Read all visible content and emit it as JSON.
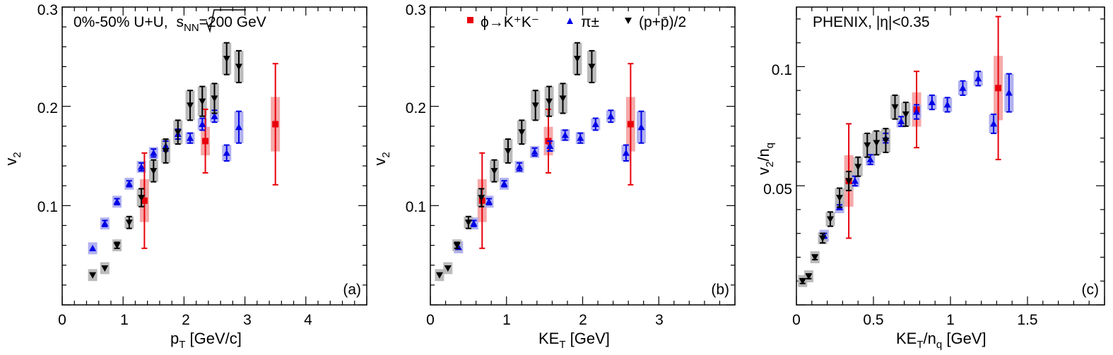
{
  "colors": {
    "phi": "#e8000b",
    "pion": "#0000e6",
    "proton": "#000000",
    "phi_box": "#f4a0a0",
    "pion_box": "#a9a9ef",
    "proton_box": "#b4b4b4"
  },
  "annotations": {
    "system_prefix": "0%-50% U+U, ",
    "system_root": "s",
    "system_sub": "NN",
    "system_suffix": "=200 GeV",
    "experiment": "PHENIX, |η|<0.35"
  },
  "legend": {
    "phi_label": "ϕ→K⁺K⁻",
    "pion_label": "π±",
    "proton_label": "(p+p̄)/2"
  },
  "chart_data": [
    {
      "type": "scatter",
      "panel_tag": "(a)",
      "xlabel": "p_T [GeV/c]",
      "ylabel": "v_2",
      "xlim": [
        0,
        5
      ],
      "ylim": [
        0,
        0.3
      ],
      "x_ticks": [
        "0",
        "1",
        "2",
        "3",
        "4"
      ],
      "y_ticks": [
        "0.1",
        "0.2",
        "0.3"
      ],
      "series": [
        {
          "name": "ϕ→K⁺K⁻",
          "marker": "square",
          "points": [
            [
              1.35,
              0.105,
              0.048
            ],
            [
              2.35,
              0.165,
              0.032
            ],
            [
              3.5,
              0.182,
              0.061
            ]
          ]
        },
        {
          "name": "π±",
          "marker": "triangle-up",
          "points": [
            [
              0.5,
              0.057,
              0.002
            ],
            [
              0.7,
              0.082,
              0.003
            ],
            [
              0.9,
              0.104,
              0.003
            ],
            [
              1.1,
              0.122,
              0.003
            ],
            [
              1.3,
              0.139,
              0.004
            ],
            [
              1.5,
              0.153,
              0.004
            ],
            [
              1.7,
              0.16,
              0.005
            ],
            [
              1.9,
              0.172,
              0.005
            ],
            [
              2.1,
              0.168,
              0.005
            ],
            [
              2.3,
              0.182,
              0.006
            ],
            [
              2.5,
              0.19,
              0.006
            ],
            [
              2.7,
              0.153,
              0.008
            ],
            [
              2.9,
              0.179,
              0.016
            ]
          ]
        },
        {
          "name": "(p+p̄)/2",
          "marker": "triangle-down",
          "points": [
            [
              0.5,
              0.03,
              0.002
            ],
            [
              0.7,
              0.037,
              0.002
            ],
            [
              0.9,
              0.06,
              0.003
            ],
            [
              1.1,
              0.083,
              0.006
            ],
            [
              1.3,
              0.108,
              0.009
            ],
            [
              1.5,
              0.135,
              0.011
            ],
            [
              1.7,
              0.155,
              0.012
            ],
            [
              1.9,
              0.174,
              0.012
            ],
            [
              2.1,
              0.201,
              0.015
            ],
            [
              2.3,
              0.205,
              0.015
            ],
            [
              2.5,
              0.208,
              0.015
            ],
            [
              2.7,
              0.248,
              0.016
            ],
            [
              2.9,
              0.24,
              0.016
            ]
          ]
        }
      ]
    },
    {
      "type": "scatter",
      "panel_tag": "(b)",
      "xlabel": "KE_T [GeV]",
      "ylabel": "v_2",
      "xlim": [
        0,
        4
      ],
      "ylim": [
        0,
        0.3
      ],
      "x_ticks": [
        "0",
        "1",
        "2",
        "3"
      ],
      "y_ticks": [
        "0.1",
        "0.2",
        "0.3"
      ],
      "series": [
        {
          "name": "ϕ→K⁺K⁻",
          "marker": "square",
          "points": [
            [
              0.68,
              0.105,
              0.048
            ],
            [
              1.55,
              0.165,
              0.032
            ],
            [
              2.63,
              0.182,
              0.061
            ]
          ]
        },
        {
          "name": "π±",
          "marker": "triangle-up",
          "points": [
            [
              0.37,
              0.058,
              0.002
            ],
            [
              0.57,
              0.082,
              0.003
            ],
            [
              0.77,
              0.104,
              0.003
            ],
            [
              0.97,
              0.122,
              0.003
            ],
            [
              1.17,
              0.139,
              0.004
            ],
            [
              1.37,
              0.154,
              0.004
            ],
            [
              1.57,
              0.16,
              0.005
            ],
            [
              1.77,
              0.171,
              0.005
            ],
            [
              1.97,
              0.168,
              0.005
            ],
            [
              2.17,
              0.182,
              0.006
            ],
            [
              2.37,
              0.19,
              0.006
            ],
            [
              2.57,
              0.153,
              0.008
            ],
            [
              2.77,
              0.179,
              0.016
            ]
          ]
        },
        {
          "name": "(p+p̄)/2",
          "marker": "triangle-down",
          "points": [
            [
              0.12,
              0.03,
              0.002
            ],
            [
              0.23,
              0.037,
              0.002
            ],
            [
              0.35,
              0.06,
              0.003
            ],
            [
              0.5,
              0.083,
              0.006
            ],
            [
              0.67,
              0.108,
              0.009
            ],
            [
              0.84,
              0.135,
              0.011
            ],
            [
              1.02,
              0.155,
              0.012
            ],
            [
              1.2,
              0.174,
              0.012
            ],
            [
              1.38,
              0.201,
              0.015
            ],
            [
              1.56,
              0.205,
              0.015
            ],
            [
              1.74,
              0.208,
              0.015
            ],
            [
              1.93,
              0.248,
              0.016
            ],
            [
              2.12,
              0.24,
              0.016
            ]
          ]
        }
      ]
    },
    {
      "type": "scatter",
      "panel_tag": "(c)",
      "xlabel": "KE_T/n_q [GeV]",
      "ylabel": "v_2/n_q",
      "xlim": [
        0,
        2
      ],
      "ylim": [
        0,
        0.125
      ],
      "x_ticks": [
        "0",
        "0.5",
        "1",
        "1.5"
      ],
      "y_ticks": [
        "0.05",
        "0.1"
      ],
      "series": [
        {
          "name": "ϕ→K⁺K⁻",
          "marker": "square",
          "points": [
            [
              0.34,
              0.052,
              0.024
            ],
            [
              0.78,
              0.082,
              0.016
            ],
            [
              1.31,
              0.091,
              0.03
            ]
          ]
        },
        {
          "name": "π±",
          "marker": "triangle-up",
          "points": [
            [
              0.18,
              0.029,
              0.001
            ],
            [
              0.28,
              0.041,
              0.001
            ],
            [
              0.38,
              0.052,
              0.002
            ],
            [
              0.48,
              0.061,
              0.002
            ],
            [
              0.58,
              0.07,
              0.002
            ],
            [
              0.68,
              0.077,
              0.002
            ],
            [
              0.78,
              0.081,
              0.003
            ],
            [
              0.88,
              0.085,
              0.003
            ],
            [
              0.98,
              0.084,
              0.003
            ],
            [
              1.08,
              0.091,
              0.003
            ],
            [
              1.18,
              0.095,
              0.003
            ],
            [
              1.28,
              0.076,
              0.004
            ],
            [
              1.38,
              0.089,
              0.008
            ]
          ]
        },
        {
          "name": "(p+p̄)/2",
          "marker": "triangle-down",
          "points": [
            [
              0.04,
              0.01,
              0.001
            ],
            [
              0.08,
              0.012,
              0.001
            ],
            [
              0.12,
              0.02,
              0.001
            ],
            [
              0.17,
              0.028,
              0.002
            ],
            [
              0.22,
              0.036,
              0.003
            ],
            [
              0.28,
              0.045,
              0.004
            ],
            [
              0.34,
              0.052,
              0.004
            ],
            [
              0.4,
              0.058,
              0.004
            ],
            [
              0.46,
              0.067,
              0.005
            ],
            [
              0.52,
              0.068,
              0.005
            ],
            [
              0.58,
              0.069,
              0.005
            ],
            [
              0.64,
              0.083,
              0.005
            ],
            [
              0.71,
              0.08,
              0.005
            ]
          ]
        }
      ]
    }
  ]
}
